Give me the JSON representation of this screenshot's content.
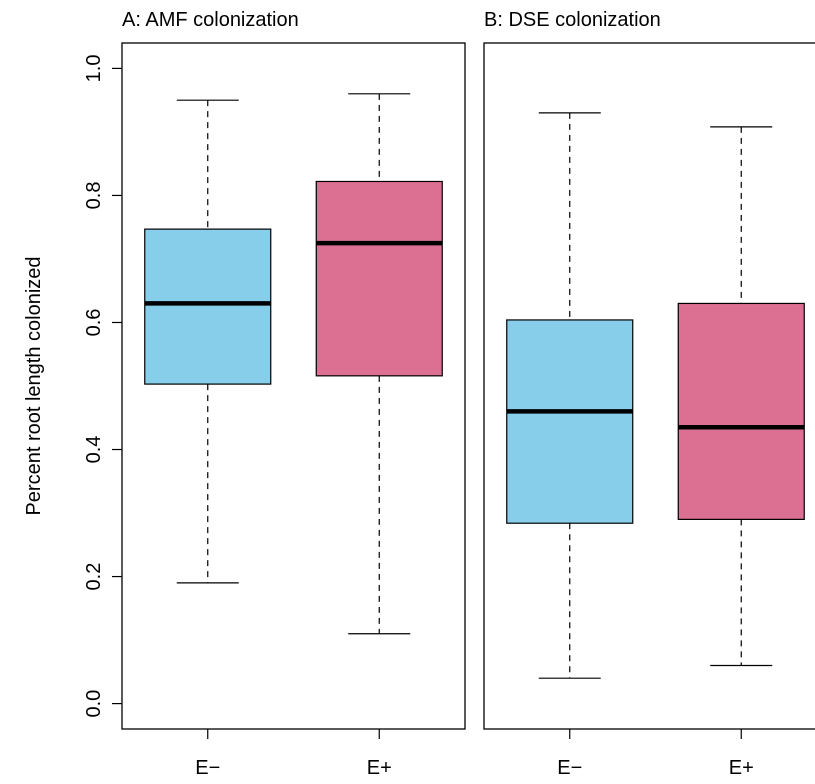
{
  "chart_data": [
    {
      "type": "box",
      "title": "A: AMF colonization",
      "ylabel": "Percent root length colonized",
      "xlabel": "",
      "ylim": [
        -0.04,
        1.04
      ],
      "yticks": [
        "0.0",
        "0.2",
        "0.4",
        "0.6",
        "0.8",
        "1.0"
      ],
      "grid": false,
      "categories": [
        "E−",
        "E+"
      ],
      "boxes": [
        {
          "category": "E−",
          "min": 0.19,
          "q1": 0.503,
          "median": 0.63,
          "q3": 0.747,
          "max": 0.95,
          "color": "#87CEEB"
        },
        {
          "category": "E+",
          "min": 0.11,
          "q1": 0.516,
          "median": 0.725,
          "q3": 0.822,
          "max": 0.96,
          "color": "#DB7093"
        }
      ]
    },
    {
      "type": "box",
      "title": "B: DSE colonization",
      "xlabel": "",
      "ylim": [
        -0.04,
        1.04
      ],
      "grid": false,
      "categories": [
        "E−",
        "E+"
      ],
      "boxes": [
        {
          "category": "E−",
          "min": 0.04,
          "q1": 0.284,
          "median": 0.46,
          "q3": 0.604,
          "max": 0.93,
          "color": "#87CEEB"
        },
        {
          "category": "E+",
          "min": 0.06,
          "q1": 0.29,
          "median": 0.435,
          "q3": 0.63,
          "max": 0.908,
          "color": "#DB7093"
        }
      ]
    }
  ]
}
